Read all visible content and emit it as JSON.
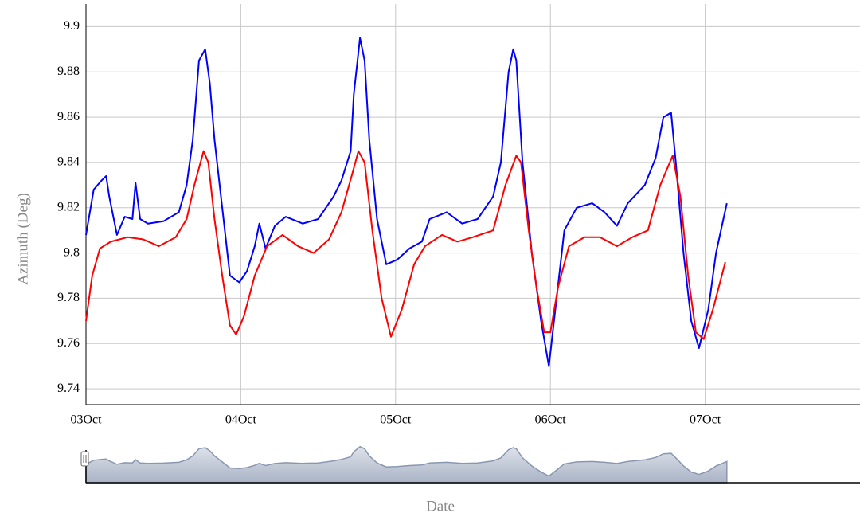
{
  "chart_data": {
    "type": "line",
    "y_label": "Azimuth (Deg)",
    "x_label": "Date",
    "xlim": [
      3,
      8
    ],
    "xticks": [
      {
        "value": 3,
        "label": "03Oct"
      },
      {
        "value": 4,
        "label": "04Oct"
      },
      {
        "value": 5,
        "label": "05Oct"
      },
      {
        "value": 6,
        "label": "06Oct"
      },
      {
        "value": 7,
        "label": "07Oct"
      }
    ],
    "ylim": [
      9.733,
      9.91
    ],
    "yticks": [
      9.74,
      9.76,
      9.78,
      9.8,
      9.82,
      9.84,
      9.86,
      9.88,
      9.9
    ],
    "grid": true,
    "series": [
      {
        "color": "#0000ff",
        "x": [
          3.0,
          3.05,
          3.1,
          3.13,
          3.15,
          3.2,
          3.25,
          3.3,
          3.32,
          3.35,
          3.4,
          3.5,
          3.6,
          3.65,
          3.69,
          3.73,
          3.77,
          3.8,
          3.83,
          3.88,
          3.93,
          3.99,
          4.04,
          4.09,
          4.12,
          4.16,
          4.22,
          4.29,
          4.4,
          4.5,
          4.6,
          4.65,
          4.71,
          4.73,
          4.77,
          4.8,
          4.83,
          4.88,
          4.94,
          5.01,
          5.09,
          5.17,
          5.22,
          5.33,
          5.43,
          5.53,
          5.63,
          5.68,
          5.73,
          5.76,
          5.78,
          5.82,
          5.88,
          5.94,
          5.99,
          6.04,
          6.09,
          6.17,
          6.27,
          6.35,
          6.43,
          6.5,
          6.61,
          6.68,
          6.73,
          6.78,
          6.81,
          6.86,
          6.91,
          6.96,
          7.02,
          7.07,
          7.14
        ],
        "values": [
          9.808,
          9.828,
          9.832,
          9.834,
          9.825,
          9.808,
          9.816,
          9.815,
          9.831,
          9.815,
          9.813,
          9.814,
          9.818,
          9.83,
          9.85,
          9.885,
          9.89,
          9.875,
          9.85,
          9.82,
          9.79,
          9.787,
          9.792,
          9.803,
          9.813,
          9.802,
          9.812,
          9.816,
          9.813,
          9.815,
          9.825,
          9.832,
          9.845,
          9.87,
          9.895,
          9.885,
          9.85,
          9.815,
          9.795,
          9.797,
          9.802,
          9.805,
          9.815,
          9.818,
          9.813,
          9.815,
          9.825,
          9.84,
          9.88,
          9.89,
          9.885,
          9.84,
          9.8,
          9.77,
          9.75,
          9.78,
          9.81,
          9.82,
          9.822,
          9.818,
          9.812,
          9.822,
          9.83,
          9.842,
          9.86,
          9.862,
          9.84,
          9.8,
          9.77,
          9.758,
          9.775,
          9.8,
          9.822
        ]
      },
      {
        "color": "#ff0000",
        "x": [
          3.0,
          3.04,
          3.09,
          3.16,
          3.27,
          3.37,
          3.47,
          3.58,
          3.65,
          3.7,
          3.76,
          3.79,
          3.83,
          3.88,
          3.93,
          3.97,
          4.02,
          4.09,
          4.17,
          4.27,
          4.37,
          4.47,
          4.57,
          4.65,
          4.72,
          4.76,
          4.8,
          4.85,
          4.91,
          4.97,
          5.04,
          5.12,
          5.19,
          5.3,
          5.4,
          5.5,
          5.63,
          5.71,
          5.78,
          5.81,
          5.86,
          5.91,
          5.96,
          6.0,
          6.05,
          6.12,
          6.22,
          6.32,
          6.43,
          6.53,
          6.63,
          6.71,
          6.79,
          6.84,
          6.89,
          6.94,
          6.99,
          7.05,
          7.13
        ],
        "values": [
          9.77,
          9.79,
          9.802,
          9.805,
          9.807,
          9.806,
          9.803,
          9.807,
          9.815,
          9.83,
          9.845,
          9.84,
          9.815,
          9.79,
          9.768,
          9.764,
          9.772,
          9.79,
          9.803,
          9.808,
          9.803,
          9.8,
          9.806,
          9.818,
          9.835,
          9.845,
          9.84,
          9.81,
          9.78,
          9.763,
          9.775,
          9.795,
          9.803,
          9.808,
          9.805,
          9.807,
          9.81,
          9.83,
          9.843,
          9.84,
          9.81,
          9.785,
          9.765,
          9.765,
          9.785,
          9.803,
          9.807,
          9.807,
          9.803,
          9.807,
          9.81,
          9.83,
          9.843,
          9.825,
          9.79,
          9.765,
          9.762,
          9.775,
          9.796
        ]
      }
    ]
  }
}
